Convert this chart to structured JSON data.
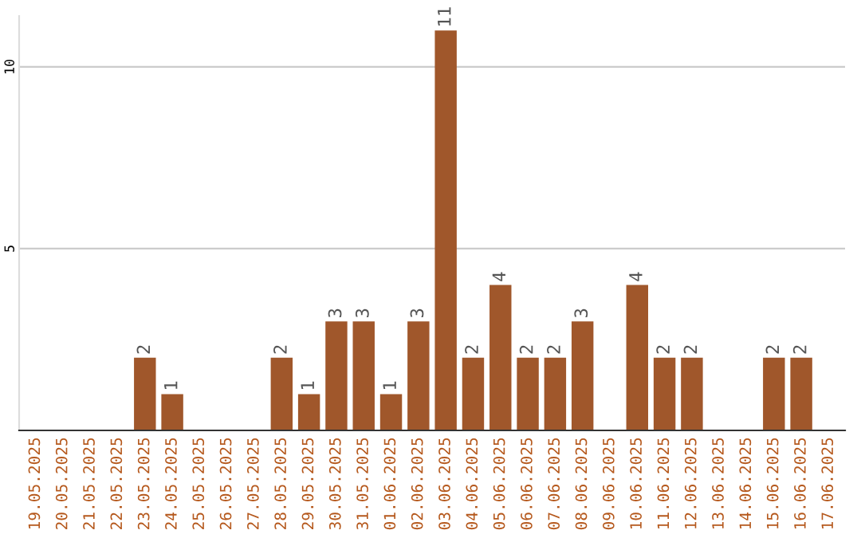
{
  "chart_data": {
    "type": "bar",
    "categories": [
      "19.05.2025",
      "20.05.2025",
      "21.05.2025",
      "22.05.2025",
      "23.05.2025",
      "24.05.2025",
      "25.05.2025",
      "26.05.2025",
      "27.05.2025",
      "28.05.2025",
      "29.05.2025",
      "30.05.2025",
      "31.05.2025",
      "01.06.2025",
      "02.06.2025",
      "03.06.2025",
      "04.06.2025",
      "05.06.2025",
      "06.06.2025",
      "07.06.2025",
      "08.06.2025",
      "09.06.2025",
      "10.06.2025",
      "11.06.2025",
      "12.06.2025",
      "13.06.2025",
      "14.06.2025",
      "15.06.2025",
      "16.06.2025",
      "17.06.2025"
    ],
    "values": [
      0,
      0,
      0,
      0,
      2,
      1,
      0,
      0,
      0,
      2,
      1,
      3,
      3,
      1,
      3,
      11,
      2,
      4,
      2,
      2,
      3,
      0,
      4,
      2,
      2,
      0,
      0,
      2,
      2,
      0
    ],
    "value_labels": [
      null,
      null,
      null,
      null,
      "2",
      "1",
      null,
      null,
      null,
      "2",
      "1",
      "3",
      "3",
      "1",
      "3",
      "11",
      "2",
      "4",
      "2",
      "2",
      "3",
      null,
      "4",
      "2",
      "2",
      null,
      null,
      "2",
      "2",
      null
    ],
    "color": "#a0572b",
    "ylim": [
      0,
      11.4
    ],
    "yticks": [
      5,
      10
    ],
    "grid": "y"
  }
}
